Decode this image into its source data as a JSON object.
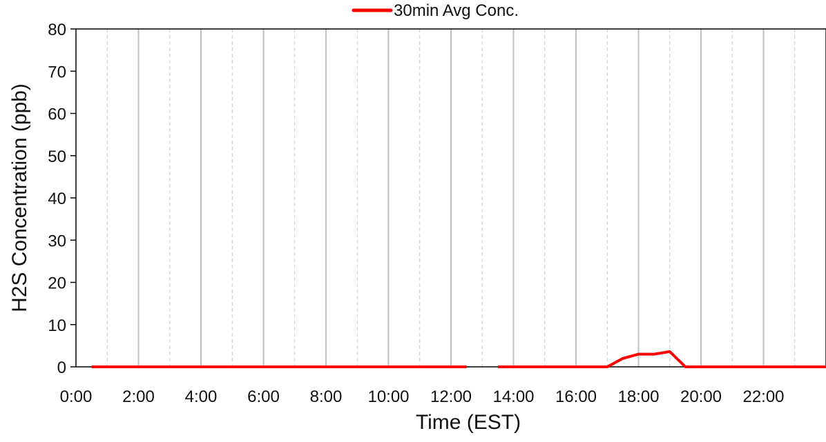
{
  "chart_data": {
    "type": "line",
    "title": "",
    "xlabel": "Time (EST)",
    "ylabel": "H2S Concentration  (ppb)",
    "xlim": [
      0,
      24
    ],
    "ylim": [
      0,
      80
    ],
    "x_ticks": [
      {
        "value": 0,
        "label": "0:00"
      },
      {
        "value": 2,
        "label": "2:00"
      },
      {
        "value": 4,
        "label": "4:00"
      },
      {
        "value": 6,
        "label": "6:00"
      },
      {
        "value": 8,
        "label": "8:00"
      },
      {
        "value": 10,
        "label": "10:00"
      },
      {
        "value": 12,
        "label": "12:00"
      },
      {
        "value": 14,
        "label": "14:00"
      },
      {
        "value": 16,
        "label": "16:00"
      },
      {
        "value": 18,
        "label": "18:00"
      },
      {
        "value": 20,
        "label": "20:00"
      },
      {
        "value": 22,
        "label": "22:00"
      }
    ],
    "y_ticks": [
      0,
      10,
      20,
      30,
      40,
      50,
      60,
      70,
      80
    ],
    "grid": {
      "major_x": true,
      "minor_x_dashed": true,
      "y": false
    },
    "legend": {
      "position": "top-center"
    },
    "series": [
      {
        "name": "30min Avg Conc.",
        "color": "#ff0000",
        "segments": [
          {
            "x": [
              0.5,
              12.5
            ],
            "y": [
              0,
              0
            ]
          },
          {
            "x": [
              13.5,
              17,
              17.5,
              18,
              18.5,
              19,
              19.5,
              24
            ],
            "y": [
              0,
              0,
              2,
              3,
              3,
              3.6,
              0,
              0
            ]
          }
        ]
      }
    ]
  }
}
